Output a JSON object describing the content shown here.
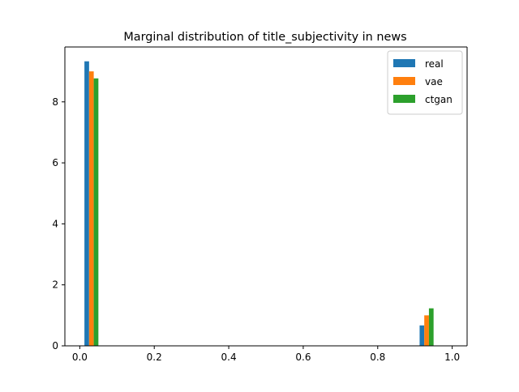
{
  "chart_data": {
    "type": "bar",
    "title": "Marginal distribution of title_subjectivity in news",
    "xlabel": "",
    "ylabel": "",
    "xlim": [
      -0.04,
      1.04
    ],
    "ylim": [
      0,
      9.8
    ],
    "xticks": [
      0.0,
      0.2,
      0.4,
      0.6,
      0.8,
      1.0
    ],
    "xtick_labels": [
      "0.0",
      "0.2",
      "0.4",
      "0.6",
      "0.8",
      "1.0"
    ],
    "yticks": [
      0,
      2,
      4,
      6,
      8
    ],
    "ytick_labels": [
      "0",
      "2",
      "4",
      "6",
      "8"
    ],
    "bin_edges": [
      0.0,
      0.1,
      0.2,
      0.3,
      0.4,
      0.5,
      0.6,
      0.7,
      0.8,
      0.9,
      1.0
    ],
    "grid": false,
    "legend_position": "top-right",
    "series": [
      {
        "name": "real",
        "color": "#1f77b4",
        "values": [
          9.33,
          0,
          0,
          0,
          0,
          0,
          0,
          0,
          0,
          0.67
        ]
      },
      {
        "name": "vae",
        "color": "#ff7f0e",
        "values": [
          9.0,
          0,
          0,
          0,
          0,
          0,
          0,
          0,
          0,
          1.0
        ]
      },
      {
        "name": "ctgan",
        "color": "#2ca02c",
        "values": [
          8.77,
          0,
          0,
          0,
          0,
          0,
          0,
          0,
          0,
          1.23
        ]
      }
    ]
  }
}
